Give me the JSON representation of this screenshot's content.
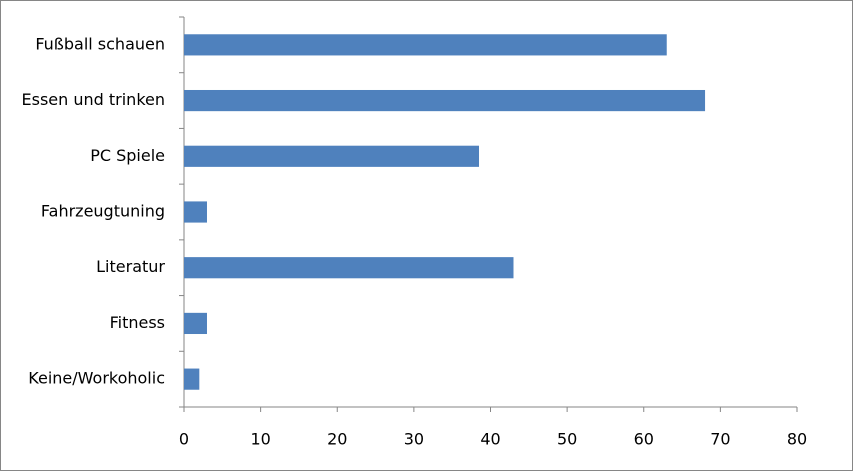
{
  "chart_data": {
    "type": "bar",
    "orientation": "horizontal",
    "categories": [
      "Fußball schauen",
      "Essen und trinken",
      "PC Spiele",
      "Fahrzeugtuning",
      "Literatur",
      "Fitness",
      "Keine/Workoholic"
    ],
    "values": [
      63,
      68,
      38.5,
      3,
      43,
      3,
      2
    ],
    "color": "#4f81bd",
    "xlim": [
      0,
      80
    ],
    "xticks": [
      0,
      10,
      20,
      30,
      40,
      50,
      60,
      70,
      80
    ],
    "grid": false
  }
}
